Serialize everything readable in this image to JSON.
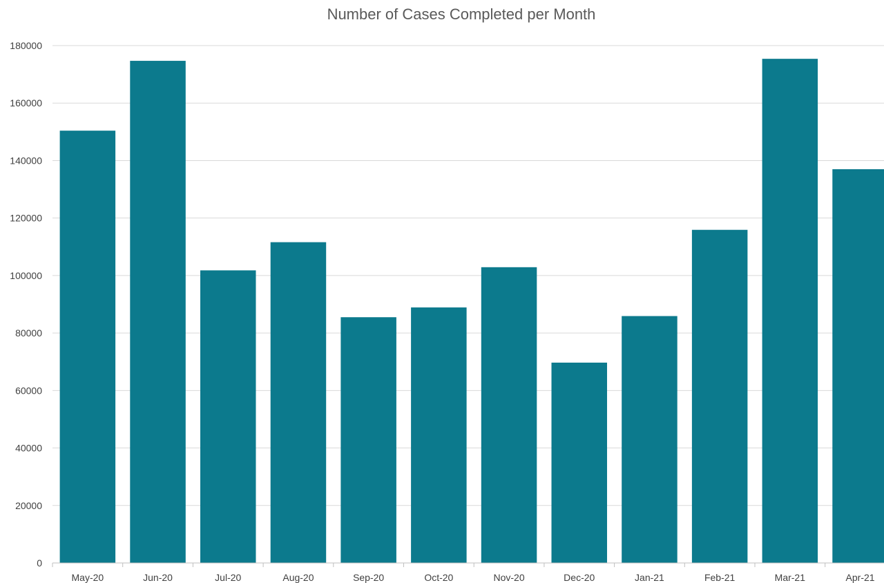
{
  "chart_data": {
    "type": "bar",
    "title": "Number of Cases Completed per Month",
    "xlabel": "",
    "ylabel": "",
    "categories": [
      "May-20",
      "Jun-20",
      "Jul-20",
      "Aug-20",
      "Sep-20",
      "Oct-20",
      "Nov-20",
      "Dec-20",
      "Jan-21",
      "Feb-21",
      "Mar-21",
      "Apr-21"
    ],
    "values": [
      150400,
      174700,
      101800,
      111600,
      85500,
      88900,
      102900,
      69700,
      85900,
      115900,
      175400,
      137000
    ],
    "ylim": [
      0,
      180000
    ],
    "yticks": [
      "0",
      "20000",
      "40000",
      "60000",
      "80000",
      "100000",
      "120000",
      "140000",
      "160000",
      "180000"
    ],
    "grid": true,
    "legend": "none",
    "colors": {
      "bar": "#0c7a8d",
      "grid": "#d9d9d9",
      "axis": "#bfbfbf"
    }
  }
}
